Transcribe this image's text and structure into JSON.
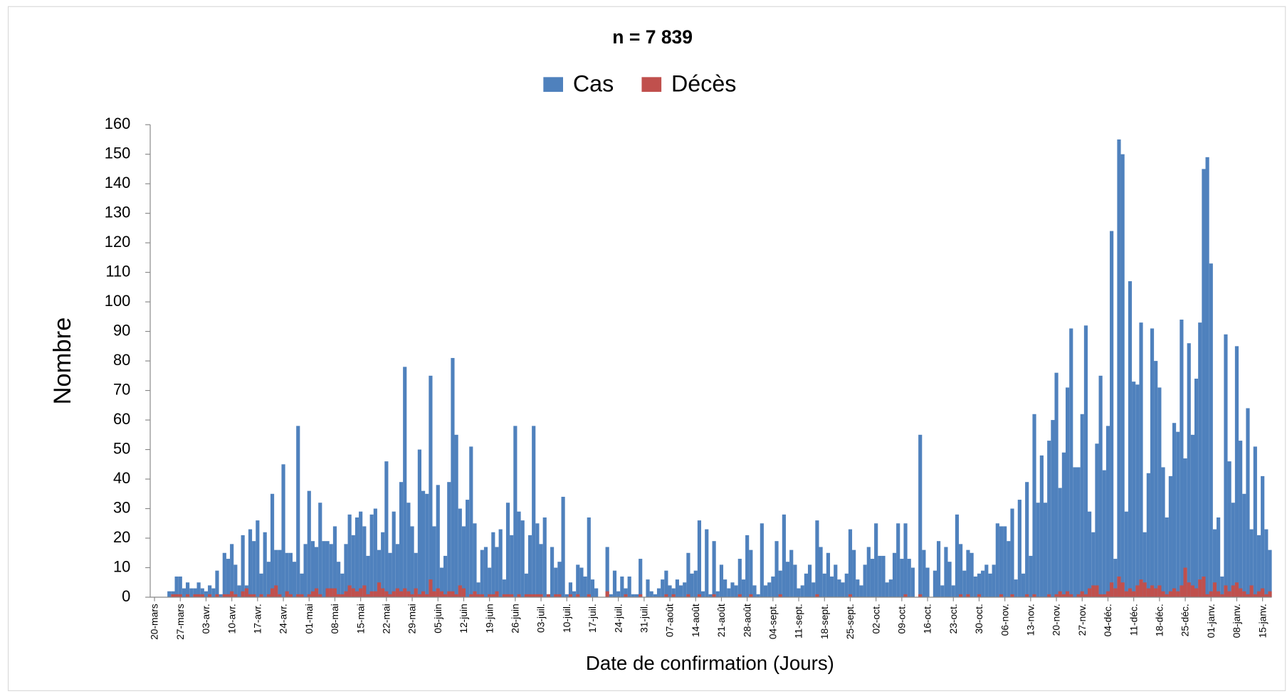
{
  "chart_data": {
    "type": "bar",
    "title": "n = 7 839",
    "xlabel": "Date de confirmation (Jours)",
    "ylabel": "Nombre",
    "ylim": [
      0,
      160
    ],
    "yticks": [
      0,
      10,
      20,
      30,
      40,
      50,
      60,
      70,
      80,
      90,
      100,
      110,
      120,
      130,
      140,
      150,
      160
    ],
    "legend": "top",
    "categories": [
      "20-mars",
      null,
      null,
      null,
      null,
      null,
      null,
      "27-mars",
      null,
      null,
      null,
      null,
      null,
      null,
      "03-avr.",
      null,
      null,
      null,
      null,
      null,
      null,
      "10-avr.",
      null,
      null,
      null,
      null,
      null,
      null,
      "17-avr.",
      null,
      null,
      null,
      null,
      null,
      null,
      "24-avr.",
      null,
      null,
      null,
      null,
      null,
      null,
      "01-mai",
      null,
      null,
      null,
      null,
      null,
      null,
      "08-mai",
      null,
      null,
      null,
      null,
      null,
      null,
      "15-mai",
      null,
      null,
      null,
      null,
      null,
      null,
      "22-mai",
      null,
      null,
      null,
      null,
      null,
      null,
      "29-mai",
      null,
      null,
      null,
      null,
      null,
      null,
      "05-juin",
      null,
      null,
      null,
      null,
      null,
      null,
      "12-juin",
      null,
      null,
      null,
      null,
      null,
      null,
      "19-juin",
      null,
      null,
      null,
      null,
      null,
      null,
      "26-juin",
      null,
      null,
      null,
      null,
      null,
      null,
      "03-juil.",
      null,
      null,
      null,
      null,
      null,
      null,
      "10-juil.",
      null,
      null,
      null,
      null,
      null,
      null,
      "17-juil.",
      null,
      null,
      null,
      null,
      null,
      null,
      "24-juil.",
      null,
      null,
      null,
      null,
      null,
      null,
      "31-juil.",
      null,
      null,
      null,
      null,
      null,
      null,
      "07-août",
      null,
      null,
      null,
      null,
      null,
      null,
      "14-août",
      null,
      null,
      null,
      null,
      null,
      null,
      "21-août",
      null,
      null,
      null,
      null,
      null,
      null,
      "28-août",
      null,
      null,
      null,
      null,
      null,
      null,
      "04-sept.",
      null,
      null,
      null,
      null,
      null,
      null,
      "11-sept.",
      null,
      null,
      null,
      null,
      null,
      null,
      "18-sept.",
      null,
      null,
      null,
      null,
      null,
      null,
      "25-sept.",
      null,
      null,
      null,
      null,
      null,
      null,
      "02-oct.",
      null,
      null,
      null,
      null,
      null,
      null,
      "09-oct.",
      null,
      null,
      null,
      null,
      null,
      null,
      "16-oct.",
      null,
      null,
      null,
      null,
      null,
      null,
      "23-oct.",
      null,
      null,
      null,
      null,
      null,
      null,
      "30-oct.",
      null,
      null,
      null,
      null,
      null,
      null,
      "06-nov.",
      null,
      null,
      null,
      null,
      null,
      null,
      "13-nov.",
      null,
      null,
      null,
      null,
      null,
      null,
      "20-nov.",
      null,
      null,
      null,
      null,
      null,
      null,
      "27-nov.",
      null,
      null,
      null,
      null,
      null,
      null,
      "04-déc.",
      null,
      null,
      null,
      null,
      null,
      null,
      "11-déc.",
      null,
      null,
      null,
      null,
      null,
      null,
      "18-déc.",
      null,
      null,
      null,
      null,
      null,
      null,
      "25-déc.",
      null,
      null,
      null,
      null,
      null,
      null,
      "01-janv.",
      null,
      null,
      null,
      null,
      null,
      null,
      "08-janv.",
      null,
      null,
      null,
      null,
      null,
      null,
      "15-janv.",
      null,
      null
    ],
    "series": [
      {
        "name": "Cas",
        "color": "#4f81bd",
        "values": [
          0,
          0,
          0,
          0,
          2,
          2,
          7,
          7,
          3,
          5,
          3,
          3,
          5,
          3,
          2,
          4,
          3,
          9,
          1,
          15,
          13,
          18,
          11,
          4,
          21,
          4,
          23,
          19,
          26,
          8,
          22,
          12,
          35,
          16,
          16,
          45,
          15,
          15,
          12,
          58,
          8,
          18,
          36,
          19,
          17,
          32,
          19,
          19,
          18,
          24,
          12,
          8,
          18,
          28,
          21,
          27,
          29,
          24,
          14,
          28,
          30,
          16,
          22,
          46,
          15,
          29,
          18,
          39,
          78,
          32,
          24,
          15,
          50,
          36,
          35,
          75,
          24,
          38,
          10,
          14,
          39,
          81,
          55,
          30,
          24,
          33,
          51,
          25,
          5,
          16,
          17,
          10,
          22,
          17,
          23,
          6,
          32,
          21,
          58,
          29,
          26,
          8,
          21,
          58,
          25,
          18,
          27,
          1,
          17,
          10,
          12,
          34,
          1,
          5,
          2,
          11,
          10,
          7,
          27,
          6,
          3,
          0,
          0,
          17,
          1,
          9,
          2,
          7,
          3,
          7,
          1,
          1,
          13,
          0,
          6,
          2,
          1,
          3,
          6,
          9,
          4,
          3,
          6,
          4,
          5,
          15,
          8,
          9,
          26,
          2,
          23,
          1,
          19,
          2,
          11,
          6,
          3,
          5,
          4,
          13,
          6,
          21,
          16,
          4,
          1,
          25,
          4,
          5,
          7,
          19,
          9,
          28,
          12,
          16,
          11,
          3,
          4,
          8,
          11,
          5,
          26,
          17,
          8,
          15,
          7,
          11,
          6,
          5,
          8,
          23,
          16,
          6,
          4,
          11,
          17,
          13,
          25,
          14,
          14,
          5,
          6,
          15,
          25,
          13,
          25,
          13,
          10,
          0,
          55,
          16,
          10,
          0,
          9,
          19,
          4,
          17,
          12,
          4,
          28,
          18,
          9,
          16,
          15,
          7,
          8,
          9,
          11,
          8,
          11,
          25,
          24,
          24,
          19,
          30,
          6,
          33,
          8,
          39,
          14,
          62,
          32,
          48,
          32,
          53,
          60,
          76,
          37,
          49,
          71,
          91,
          44,
          44,
          62,
          92,
          29,
          22,
          52,
          75,
          43,
          58,
          124,
          13,
          155,
          150,
          29,
          107,
          73,
          72,
          93,
          22,
          42,
          91,
          80,
          71,
          44,
          27,
          41,
          59,
          56,
          94,
          47,
          86,
          55,
          74,
          93,
          145,
          149,
          113,
          23,
          27,
          7,
          89,
          46,
          32,
          85,
          53,
          35,
          64,
          23,
          51,
          21,
          41,
          23,
          16
        ]
      },
      {
        "name": "Décès",
        "color": "#c0504d",
        "values": [
          0,
          0,
          0,
          0,
          0,
          1,
          1,
          1,
          0,
          1,
          0,
          1,
          1,
          1,
          0,
          1,
          0,
          1,
          0,
          1,
          1,
          2,
          1,
          0,
          2,
          3,
          1,
          1,
          0,
          1,
          0,
          1,
          3,
          4,
          1,
          0,
          2,
          1,
          0,
          1,
          1,
          0,
          1,
          2,
          3,
          1,
          0,
          3,
          3,
          3,
          1,
          1,
          2,
          4,
          3,
          2,
          3,
          4,
          1,
          2,
          2,
          5,
          3,
          2,
          1,
          2,
          3,
          2,
          3,
          2,
          1,
          3,
          1,
          2,
          1,
          6,
          2,
          3,
          2,
          1,
          2,
          2,
          1,
          4,
          3,
          0,
          1,
          2,
          1,
          1,
          0,
          1,
          1,
          2,
          0,
          1,
          1,
          1,
          0,
          1,
          0,
          1,
          1,
          1,
          1,
          1,
          0,
          1,
          0,
          1,
          1,
          0,
          0,
          1,
          0,
          1,
          0,
          0,
          1,
          0,
          0,
          0,
          0,
          2,
          0,
          0,
          0,
          0,
          1,
          0,
          0,
          0,
          1,
          0,
          0,
          0,
          0,
          0,
          0,
          1,
          0,
          1,
          0,
          0,
          0,
          1,
          0,
          0,
          1,
          0,
          0,
          0,
          1,
          0,
          0,
          0,
          0,
          0,
          0,
          1,
          0,
          0,
          1,
          0,
          0,
          0,
          0,
          0,
          0,
          0,
          1,
          0,
          0,
          0,
          0,
          0,
          0,
          0,
          0,
          0,
          1,
          0,
          0,
          0,
          0,
          0,
          0,
          0,
          0,
          1,
          0,
          0,
          0,
          0,
          0,
          0,
          0,
          0,
          0,
          0,
          0,
          0,
          0,
          0,
          1,
          0,
          0,
          0,
          1,
          0,
          0,
          0,
          0,
          0,
          0,
          0,
          0,
          0,
          0,
          1,
          0,
          1,
          0,
          0,
          1,
          0,
          0,
          0,
          0,
          0,
          1,
          0,
          0,
          1,
          0,
          0,
          0,
          1,
          0,
          1,
          0,
          0,
          0,
          1,
          0,
          1,
          2,
          1,
          2,
          1,
          0,
          1,
          2,
          1,
          3,
          4,
          4,
          1,
          1,
          2,
          5,
          3,
          7,
          5,
          2,
          3,
          2,
          4,
          6,
          5,
          3,
          4,
          3,
          4,
          2,
          1,
          2,
          3,
          2,
          4,
          10,
          5,
          4,
          3,
          6,
          7,
          1,
          2,
          5,
          2,
          1,
          4,
          2,
          4,
          5,
          3,
          2,
          1,
          4,
          1,
          2,
          3,
          1,
          2
        ]
      }
    ]
  }
}
